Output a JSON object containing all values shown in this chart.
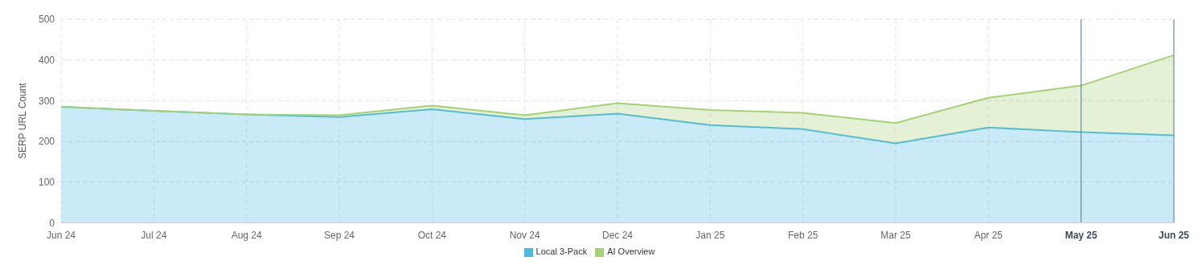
{
  "chart_data": {
    "type": "area",
    "stacked": true,
    "ylabel": "SERP URL Count",
    "categories": [
      "Jun 24",
      "Jul 24",
      "Aug 24",
      "Sep 24",
      "Oct 24",
      "Nov 24",
      "Dec 24",
      "Jan 25",
      "Feb 25",
      "Mar 25",
      "Apr 25",
      "May 25",
      "Jun 25"
    ],
    "series": [
      {
        "name": "Local 3-Pack",
        "color": "#4db8e0",
        "values": [
          285,
          275,
          266,
          260,
          279,
          255,
          268,
          240,
          230,
          195,
          234,
          223,
          215
        ]
      },
      {
        "name": "AI Overview",
        "color": "#a5d17a",
        "values": [
          0,
          0,
          0,
          4,
          9,
          9,
          26,
          37,
          40,
          50,
          73,
          114,
          197
        ]
      }
    ],
    "ylim": [
      0,
      500
    ],
    "yticks": [
      0,
      100,
      200,
      300,
      400,
      500
    ],
    "grid": true,
    "legend": "bottom",
    "ref_lines": [
      {
        "axis": "x",
        "value": "May 25",
        "color": "#5a7a8a"
      },
      {
        "axis": "x",
        "value": "Jun 25",
        "color": "#5a7a8a"
      }
    ]
  }
}
